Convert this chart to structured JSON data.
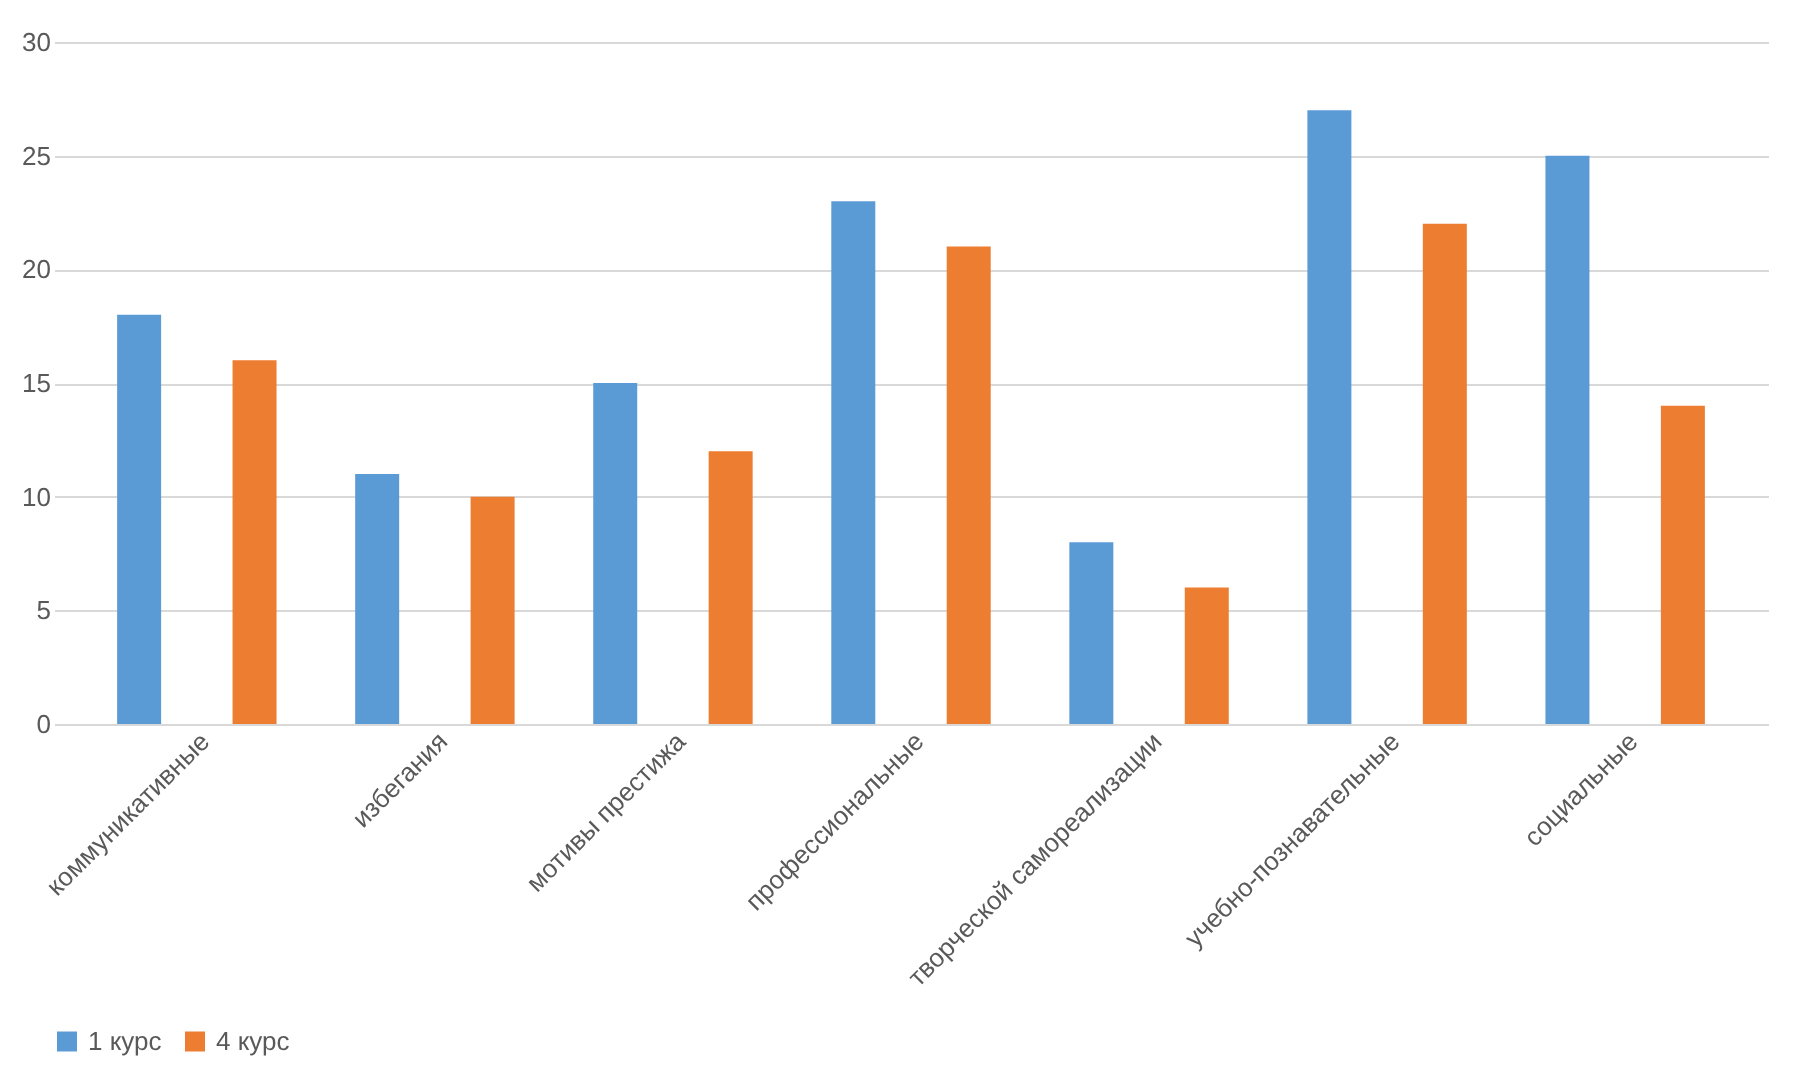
{
  "chart_data": {
    "type": "bar",
    "categories": [
      "коммуникативные",
      "избегания",
      "мотивы престижа",
      "профессиональные",
      "творческой самореализации",
      "учебно-познавательные",
      "социальные"
    ],
    "series": [
      {
        "name": "1 курс",
        "color": "#5b9bd5",
        "values": [
          18,
          11,
          15,
          23,
          8,
          27,
          25
        ]
      },
      {
        "name": "4 курс",
        "color": "#ed7d31",
        "values": [
          16,
          10,
          12,
          21,
          6,
          22,
          14
        ]
      }
    ],
    "ylim": [
      0,
      30
    ],
    "yticks": [
      0,
      5,
      10,
      15,
      20,
      25,
      30
    ],
    "grid": "y",
    "legend": "bottom"
  }
}
